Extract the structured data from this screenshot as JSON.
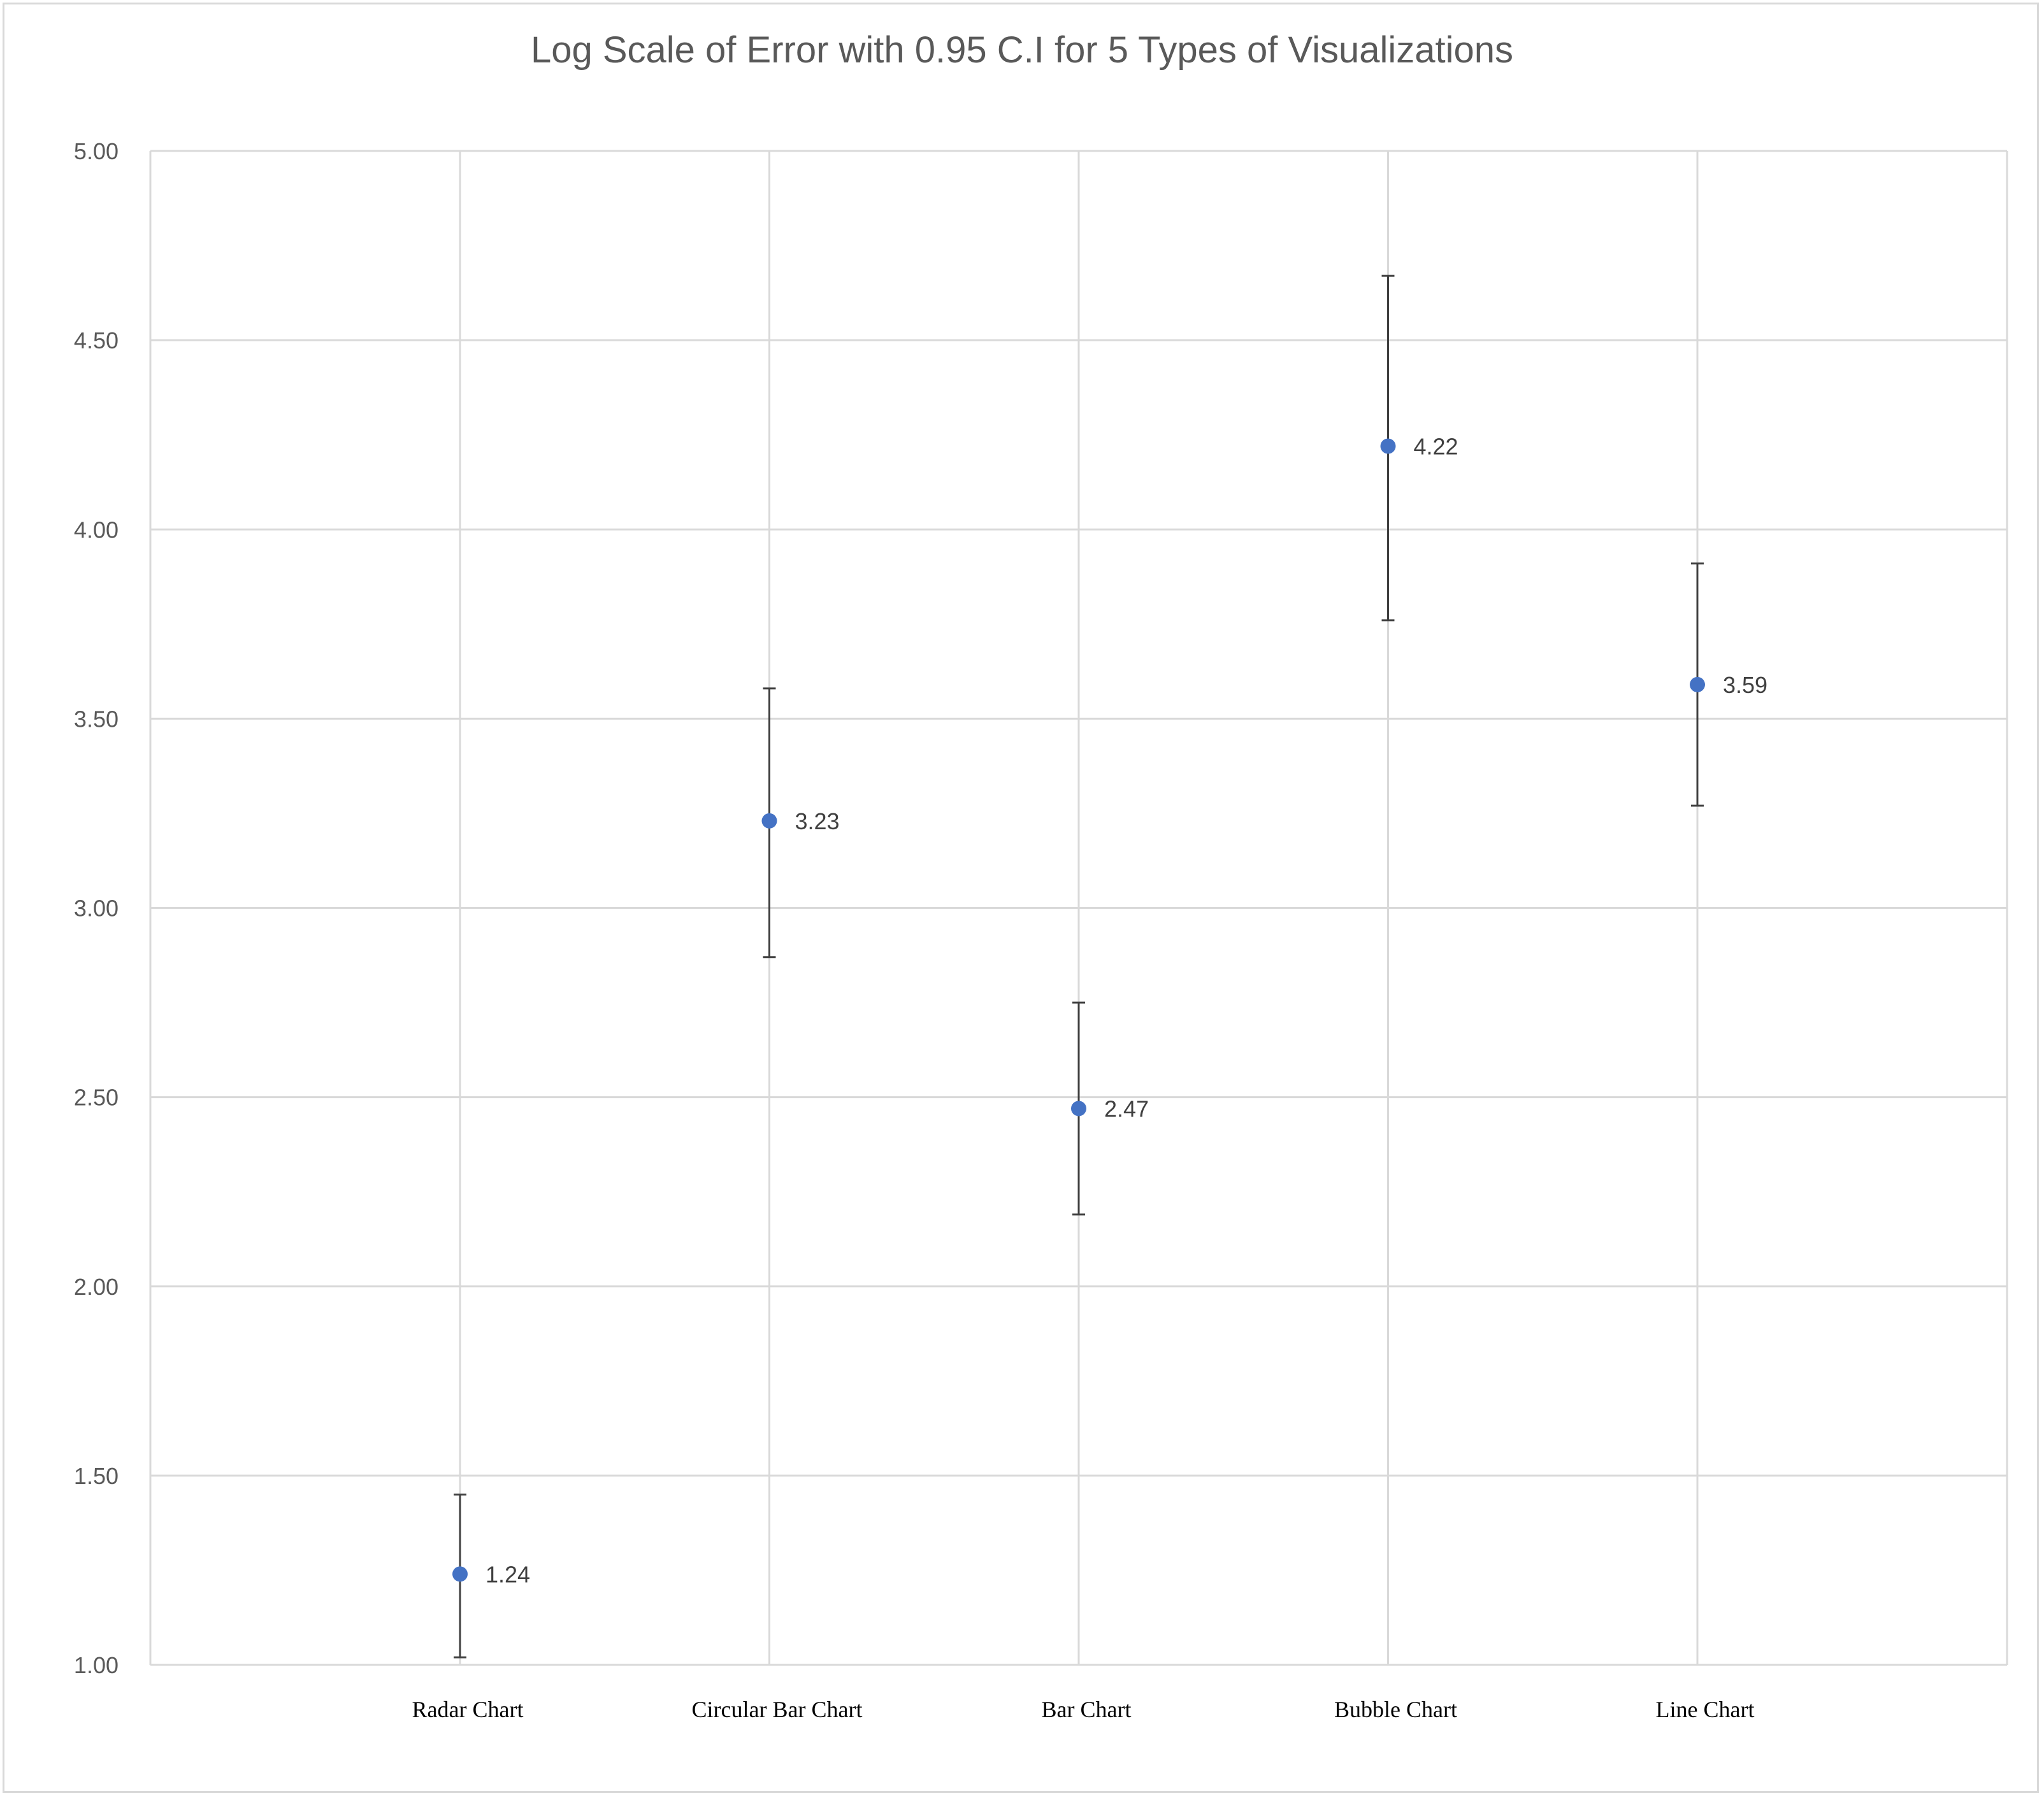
{
  "chart_data": {
    "type": "scatter",
    "title": "Log Scale of Error with 0.95 C.I for 5 Types of Visualizations",
    "xlabel": "",
    "ylabel": "",
    "categories": [
      "Radar Chart",
      "Circular Bar Chart",
      "Bar Chart",
      "Bubble Chart",
      "Line Chart"
    ],
    "y_ticks": [
      "1.00",
      "1.50",
      "2.00",
      "2.50",
      "3.00",
      "3.50",
      "4.00",
      "4.50",
      "5.00"
    ],
    "ylim": [
      1.0,
      5.0
    ],
    "grid": true,
    "series": [
      {
        "values": [
          1.24,
          3.23,
          2.47,
          4.22,
          3.59
        ],
        "labels": [
          "1.24",
          "3.23",
          "2.47",
          "4.22",
          "3.59"
        ],
        "ci_low": [
          1.02,
          2.87,
          2.19,
          3.76,
          3.27
        ],
        "ci_high": [
          1.45,
          3.58,
          2.75,
          4.67,
          3.91
        ],
        "color": "#4472c4"
      }
    ],
    "colors": {
      "grid": "#d9d9d9",
      "error_bar": "#404040",
      "frame": "#d9d9d9"
    }
  }
}
